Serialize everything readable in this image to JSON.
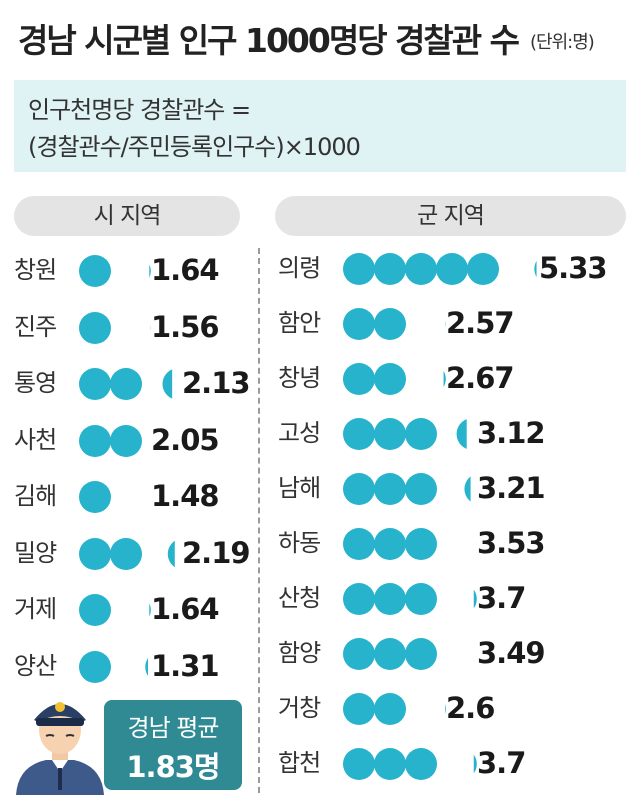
{
  "header": {
    "title": "경남 시군별 인구 1000명당 경찰관 수",
    "unit": "(단위:명)"
  },
  "formula": {
    "line1": "인구천명당 경찰관수 =",
    "line2": "(경찰관수/주민등록인구수)×1000"
  },
  "average": {
    "label": "경남 평균",
    "value": "1.83명"
  },
  "colors": {
    "dot": "#27b3cc",
    "formula_bg": "#dff3f4",
    "pill_bg": "#e4e4e4",
    "average_bg": "#2f8a93"
  },
  "icons": {
    "officer": "police-officer-icon"
  },
  "chart_data": {
    "type": "pictogram",
    "unit_per_dot": 1,
    "groups": [
      {
        "name": "시 지역",
        "categories": [
          "창원",
          "진주",
          "통영",
          "사천",
          "김해",
          "밀양",
          "거제",
          "양산"
        ],
        "values": [
          1.64,
          1.56,
          2.13,
          2.05,
          1.48,
          2.19,
          1.64,
          1.31
        ],
        "labels": [
          "1.64",
          "1.56",
          "2.13",
          "2.05",
          "1.48",
          "2.19",
          "1.64",
          "1.31"
        ]
      },
      {
        "name": "군 지역",
        "categories": [
          "의령",
          "함안",
          "창녕",
          "고성",
          "남해",
          "하동",
          "산청",
          "함양",
          "거창",
          "합천"
        ],
        "values": [
          5.33,
          2.57,
          2.67,
          3.12,
          3.21,
          3.53,
          3.7,
          3.49,
          2.6,
          3.7
        ],
        "labels": [
          "5.33",
          "2.57",
          "2.67",
          "3.12",
          "3.21",
          "3.53",
          "3.7",
          "3.49",
          "2.6",
          "3.7"
        ]
      }
    ]
  }
}
